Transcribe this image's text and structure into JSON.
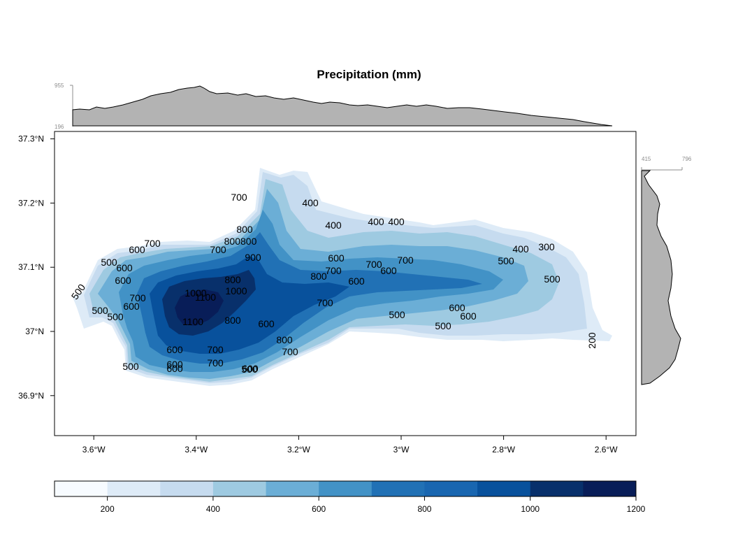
{
  "title": "Precipitation (mm)",
  "top_margin_labels": {
    "max": "955",
    "min": "196"
  },
  "right_margin_labels": {
    "min": "415",
    "max": "796"
  },
  "axes": {
    "y_ticks": [
      {
        "value": 37.3,
        "label": "37.3°N"
      },
      {
        "value": 37.2,
        "label": "37.2°N"
      },
      {
        "value": 37.1,
        "label": "37.1°N"
      },
      {
        "value": 37.0,
        "label": "37°N"
      },
      {
        "value": 36.9,
        "label": "36.9°N"
      }
    ],
    "x_ticks": [
      {
        "value": -3.6,
        "label": "3.6°W"
      },
      {
        "value": -3.4,
        "label": "3.4°W"
      },
      {
        "value": -3.2,
        "label": "3.2°W"
      },
      {
        "value": -3.0,
        "label": "3°W"
      },
      {
        "value": -2.8,
        "label": "2.8°W"
      },
      {
        "value": -2.6,
        "label": "2.6°W"
      }
    ]
  },
  "colorbar": {
    "min": 100,
    "max": 1200,
    "colors": [
      "#f7fbff",
      "#deebf7",
      "#c6dbef",
      "#9ecae1",
      "#6baed6",
      "#4292c6",
      "#2171b5",
      "#1966b0",
      "#08519c",
      "#08306b",
      "#081d58"
    ],
    "ticks": [
      "200",
      "400",
      "600",
      "800",
      "1000",
      "1200"
    ]
  },
  "contour_labels": [
    "700",
    "400",
    "400",
    "400",
    "400",
    "800",
    "800800",
    "700",
    "700",
    "600",
    "500",
    "600",
    "600",
    "900",
    "600",
    "700",
    "800",
    "400",
    "300",
    "500",
    "700",
    "700",
    "600",
    "600",
    "500",
    "800",
    "1000",
    "500",
    "1000",
    "1100",
    "700",
    "500",
    "600",
    "500",
    "500",
    "600",
    "500",
    "700",
    "600",
    "500",
    "600",
    "800",
    "1100",
    "600",
    "200",
    "800",
    "700",
    "500",
    "700",
    "600",
    "700",
    "600",
    "600"
  ]
}
